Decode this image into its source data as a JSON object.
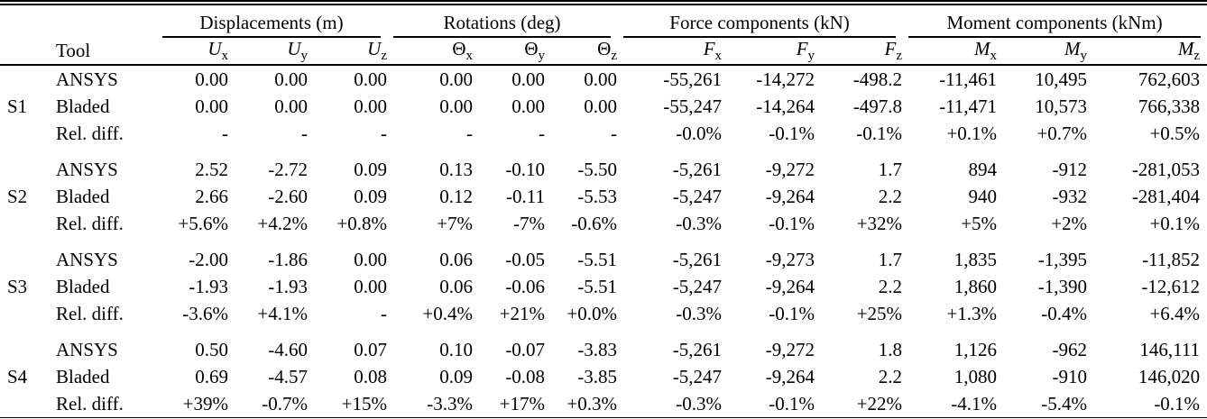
{
  "table": {
    "tool_header": "Tool",
    "groups": [
      {
        "label": "Displacements (m)",
        "columns": [
          {
            "name": "ux",
            "base": "U",
            "sub": "x",
            "italic": true
          },
          {
            "name": "uy",
            "base": "U",
            "sub": "y",
            "italic": true
          },
          {
            "name": "uz",
            "base": "U",
            "sub": "z",
            "italic": true
          }
        ]
      },
      {
        "label": "Rotations (deg)",
        "columns": [
          {
            "name": "theta-x",
            "base": "Θ",
            "sub": "x",
            "italic": false
          },
          {
            "name": "theta-y",
            "base": "Θ",
            "sub": "y",
            "italic": false
          },
          {
            "name": "theta-z",
            "base": "Θ",
            "sub": "z",
            "italic": false
          }
        ]
      },
      {
        "label": "Force components (kN)",
        "columns": [
          {
            "name": "fx",
            "base": "F",
            "sub": "x",
            "italic": true
          },
          {
            "name": "fy",
            "base": "F",
            "sub": "y",
            "italic": true
          },
          {
            "name": "fz",
            "base": "F",
            "sub": "z",
            "italic": true
          }
        ]
      },
      {
        "label": "Moment components (kNm)",
        "columns": [
          {
            "name": "mx",
            "base": "M",
            "sub": "x",
            "italic": true
          },
          {
            "name": "my",
            "base": "M",
            "sub": "y",
            "italic": true
          },
          {
            "name": "mz",
            "base": "M",
            "sub": "z",
            "italic": true
          }
        ]
      }
    ],
    "sections": [
      {
        "id": "S1",
        "rows": [
          {
            "tool": "ANSYS",
            "values": [
              "0.00",
              "0.00",
              "0.00",
              "0.00",
              "0.00",
              "0.00",
              "-55,261",
              "-14,272",
              "-498.2",
              "-11,461",
              "10,495",
              "762,603"
            ]
          },
          {
            "tool": "Bladed",
            "values": [
              "0.00",
              "0.00",
              "0.00",
              "0.00",
              "0.00",
              "0.00",
              "-55,247",
              "-14,264",
              "-497.8",
              "-11,471",
              "10,573",
              "766,338"
            ]
          },
          {
            "tool": "Rel. diff.",
            "values": [
              "-",
              "-",
              "-",
              "-",
              "-",
              "-",
              "-0.0%",
              "-0.1%",
              "-0.1%",
              "+0.1%",
              "+0.7%",
              "+0.5%"
            ]
          }
        ]
      },
      {
        "id": "S2",
        "rows": [
          {
            "tool": "ANSYS",
            "values": [
              "2.52",
              "-2.72",
              "0.09",
              "0.13",
              "-0.10",
              "-5.50",
              "-5,261",
              "-9,272",
              "1.7",
              "894",
              "-912",
              "-281,053"
            ]
          },
          {
            "tool": "Bladed",
            "values": [
              "2.66",
              "-2.60",
              "0.09",
              "0.12",
              "-0.11",
              "-5.53",
              "-5,247",
              "-9,264",
              "2.2",
              "940",
              "-932",
              "-281,404"
            ]
          },
          {
            "tool": "Rel. diff.",
            "values": [
              "+5.6%",
              "+4.2%",
              "+0.8%",
              "+7%",
              "-7%",
              "-0.6%",
              "-0.3%",
              "-0.1%",
              "+32%",
              "+5%",
              "+2%",
              "+0.1%"
            ]
          }
        ]
      },
      {
        "id": "S3",
        "rows": [
          {
            "tool": "ANSYS",
            "values": [
              "-2.00",
              "-1.86",
              "0.00",
              "0.06",
              "-0.05",
              "-5.51",
              "-5,261",
              "-9,273",
              "1.7",
              "1,835",
              "-1,395",
              "-11,852"
            ]
          },
          {
            "tool": "Bladed",
            "values": [
              "-1.93",
              "-1.93",
              "0.00",
              "0.06",
              "-0.06",
              "-5.51",
              "-5,247",
              "-9,264",
              "2.2",
              "1,860",
              "-1,390",
              "-12,612"
            ]
          },
          {
            "tool": "Rel. diff.",
            "values": [
              "-3.6%",
              "+4.1%",
              "-",
              "+0.4%",
              "+21%",
              "+0.0%",
              "-0.3%",
              "-0.1%",
              "+25%",
              "+1.3%",
              "-0.4%",
              "+6.4%"
            ]
          }
        ]
      },
      {
        "id": "S4",
        "rows": [
          {
            "tool": "ANSYS",
            "values": [
              "0.50",
              "-4.60",
              "0.07",
              "0.10",
              "-0.07",
              "-3.83",
              "-5,261",
              "-9,272",
              "1.8",
              "1,126",
              "-962",
              "146,111"
            ]
          },
          {
            "tool": "Bladed",
            "values": [
              "0.69",
              "-4.57",
              "0.08",
              "0.09",
              "-0.08",
              "-3.85",
              "-5,247",
              "-9,264",
              "2.2",
              "1,080",
              "-910",
              "146,020"
            ]
          },
          {
            "tool": "Rel. diff.",
            "values": [
              "+39%",
              "-0.7%",
              "+15%",
              "-3.3%",
              "+17%",
              "+0.3%",
              "-0.3%",
              "-0.1%",
              "+22%",
              "-4.1%",
              "-5.4%",
              "-0.1%"
            ]
          }
        ]
      }
    ]
  }
}
